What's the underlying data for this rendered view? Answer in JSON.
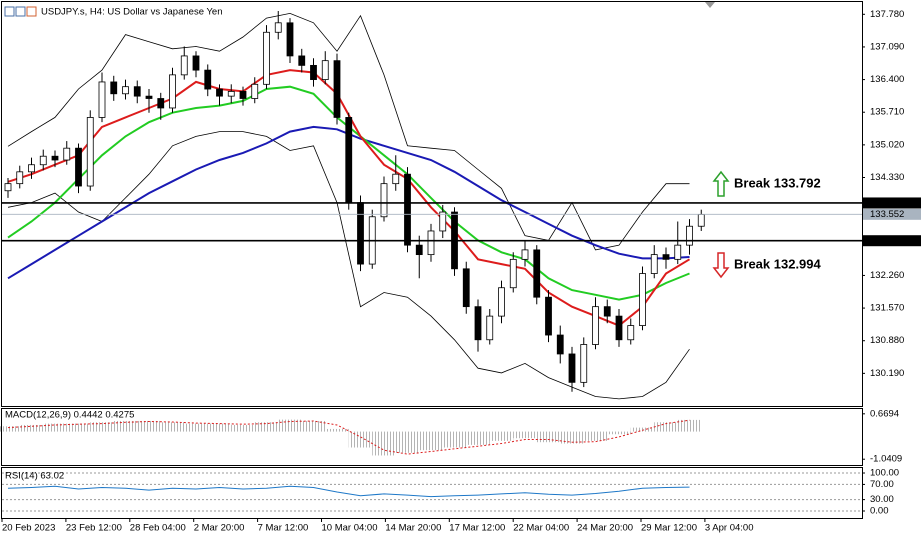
{
  "chart_data": [
    {
      "type": "candlestick",
      "title": "USDJPY.s, H4:  US Dollar vs Japanese Yen",
      "ylim": [
        129.5,
        138.04
      ],
      "yticks": [
        {
          "value": 137.78,
          "label": "137.780"
        },
        {
          "value": 137.09,
          "label": "137.090"
        },
        {
          "value": 136.4,
          "label": "136.400"
        },
        {
          "value": 135.71,
          "label": "135.710"
        },
        {
          "value": 135.02,
          "label": "135.020"
        },
        {
          "value": 134.33,
          "label": "134.330"
        },
        {
          "value": 132.26,
          "label": "132.260"
        },
        {
          "value": 131.57,
          "label": "131.570"
        },
        {
          "value": 130.88,
          "label": "130.880"
        },
        {
          "value": 130.19,
          "label": "130.190"
        }
      ],
      "candles": [
        [
          134.05,
          134.32,
          133.9,
          134.2
        ],
        [
          134.2,
          134.58,
          134.1,
          134.45
        ],
        [
          134.45,
          134.75,
          134.3,
          134.6
        ],
        [
          134.6,
          134.92,
          134.48,
          134.78
        ],
        [
          134.78,
          134.9,
          134.55,
          134.7
        ],
        [
          134.7,
          135.1,
          134.6,
          134.95
        ],
        [
          134.95,
          135.05,
          134.0,
          134.15
        ],
        [
          134.15,
          135.75,
          134.05,
          135.6
        ],
        [
          135.6,
          136.55,
          135.5,
          136.35
        ],
        [
          136.35,
          136.48,
          135.95,
          136.1
        ],
        [
          136.1,
          136.4,
          135.98,
          136.25
        ],
        [
          136.25,
          136.38,
          135.9,
          136.05
        ],
        [
          136.05,
          136.2,
          135.7,
          136.0
        ],
        [
          136.0,
          136.12,
          135.55,
          135.8
        ],
        [
          135.8,
          136.65,
          135.7,
          136.5
        ],
        [
          136.5,
          137.1,
          136.4,
          136.9
        ],
        [
          136.9,
          137.0,
          136.45,
          136.6
        ],
        [
          136.6,
          136.72,
          136.05,
          136.2
        ],
        [
          136.2,
          136.3,
          135.85,
          136.05
        ],
        [
          136.05,
          136.3,
          135.9,
          136.15
        ],
        [
          136.15,
          136.25,
          135.85,
          136.0
        ],
        [
          136.0,
          136.45,
          135.9,
          136.3
        ],
        [
          136.3,
          137.55,
          136.2,
          137.4
        ],
        [
          137.4,
          137.85,
          137.25,
          137.6
        ],
        [
          137.6,
          137.7,
          136.75,
          136.9
        ],
        [
          136.9,
          137.05,
          136.55,
          136.7
        ],
        [
          136.7,
          136.85,
          136.25,
          136.4
        ],
        [
          136.4,
          137.0,
          136.3,
          136.8
        ],
        [
          136.8,
          136.95,
          135.45,
          135.6
        ],
        [
          135.6,
          135.7,
          133.65,
          133.8
        ],
        [
          133.8,
          133.95,
          132.35,
          132.5
        ],
        [
          132.5,
          133.65,
          132.4,
          133.5
        ],
        [
          133.5,
          134.35,
          133.4,
          134.2
        ],
        [
          134.2,
          134.8,
          134.05,
          134.4
        ],
        [
          134.4,
          134.55,
          132.75,
          132.9
        ],
        [
          132.9,
          133.1,
          132.2,
          132.7
        ],
        [
          132.7,
          133.35,
          132.55,
          133.2
        ],
        [
          133.2,
          133.75,
          133.05,
          133.6
        ],
        [
          133.6,
          133.7,
          132.25,
          132.4
        ],
        [
          132.4,
          132.55,
          131.45,
          131.6
        ],
        [
          131.6,
          131.75,
          130.65,
          130.9
        ],
        [
          130.9,
          131.55,
          130.8,
          131.4
        ],
        [
          131.4,
          132.15,
          131.25,
          132.0
        ],
        [
          132.0,
          132.75,
          131.9,
          132.6
        ],
        [
          132.6,
          133.0,
          132.45,
          132.8
        ],
        [
          132.8,
          132.9,
          131.65,
          131.8
        ],
        [
          131.8,
          131.95,
          130.85,
          131.0
        ],
        [
          131.0,
          131.2,
          130.4,
          130.6
        ],
        [
          130.6,
          130.75,
          129.8,
          130.0
        ],
        [
          130.0,
          130.95,
          129.9,
          130.8
        ],
        [
          130.8,
          131.8,
          130.7,
          131.6
        ],
        [
          131.6,
          131.75,
          131.25,
          131.4
        ],
        [
          131.4,
          131.55,
          130.75,
          130.9
        ],
        [
          130.9,
          131.35,
          130.8,
          131.2
        ],
        [
          131.2,
          132.45,
          131.1,
          132.3
        ],
        [
          132.3,
          132.9,
          132.2,
          132.7
        ],
        [
          132.7,
          132.85,
          132.4,
          132.6
        ],
        [
          132.6,
          133.4,
          132.5,
          132.9
        ],
        [
          132.9,
          133.45,
          132.7,
          133.3
        ],
        [
          133.3,
          133.65,
          133.2,
          133.55
        ]
      ],
      "series": [
        {
          "color": "#000000",
          "values": [
            134.99,
            135.3,
            135.6,
            136.2,
            136.6,
            137.35,
            137.2,
            137.05,
            137.1,
            137.0,
            137.3,
            137.7,
            137.8,
            137.6,
            137.0,
            137.75,
            136.5,
            135.0,
            134.95,
            134.9,
            134.5,
            134.1,
            133.1,
            133.0,
            133.8,
            132.8,
            132.9,
            133.6,
            134.2,
            134.2
          ]
        },
        {
          "color": "#000000",
          "values": [
            133.7,
            133.8,
            134.0,
            133.6,
            133.4,
            133.9,
            134.4,
            135.0,
            135.2,
            135.3,
            135.3,
            135.2,
            134.9,
            135.0,
            133.8,
            131.6,
            131.9,
            131.8,
            131.4,
            130.9,
            130.3,
            130.2,
            130.4,
            130.1,
            129.9,
            129.7,
            129.65,
            129.7,
            130.0,
            130.7
          ]
        },
        {
          "color": "#1a1ab4",
          "values": [
            132.2,
            132.5,
            132.8,
            133.1,
            133.4,
            133.7,
            134.0,
            134.25,
            134.5,
            134.7,
            134.85,
            135.05,
            135.3,
            135.4,
            135.35,
            135.15,
            135.0,
            134.85,
            134.7,
            134.45,
            134.15,
            133.85,
            133.6,
            133.35,
            133.1,
            132.9,
            132.72,
            132.62,
            132.62,
            132.65
          ]
        },
        {
          "color": "#22cc22",
          "values": [
            133.06,
            133.4,
            133.8,
            134.3,
            134.8,
            135.2,
            135.5,
            135.7,
            135.8,
            135.85,
            135.95,
            136.2,
            136.25,
            136.1,
            135.6,
            135.2,
            134.8,
            134.4,
            133.9,
            133.4,
            133.0,
            132.75,
            132.6,
            132.2,
            131.95,
            131.85,
            131.75,
            131.85,
            132.1,
            132.3
          ]
        },
        {
          "color": "#dd1c1c",
          "values": [
            134.24,
            134.4,
            134.6,
            134.8,
            135.4,
            135.6,
            135.8,
            136.0,
            136.35,
            136.2,
            136.15,
            136.5,
            136.6,
            136.55,
            136.1,
            135.2,
            134.6,
            134.3,
            133.7,
            133.2,
            132.6,
            132.5,
            132.4,
            131.9,
            131.6,
            131.4,
            131.2,
            131.6,
            132.3,
            132.6
          ]
        }
      ],
      "levels": [
        {
          "value": 133.792,
          "color": "#000000"
        },
        {
          "value": 133.552,
          "color": "#a9b4c0"
        },
        {
          "value": 132.994,
          "color": "#000000"
        }
      ],
      "annotations": [
        {
          "text": "Break 133.792",
          "direction": "up",
          "color": "#2ca02c"
        },
        {
          "text": "Break 132.994",
          "direction": "down",
          "color": "#d62728"
        }
      ],
      "time_labels": [
        "20 Feb 2023",
        "23 Feb 12:00",
        "28 Feb 04:00",
        "2 Mar 20:00",
        "7 Mar 12:00",
        "10 Mar 04:00",
        "14 Mar 20:00",
        "17 Mar 12:00",
        "22 Mar 04:00",
        "24 Mar 20:00",
        "29 Mar 12:00",
        "3 Apr 04:00"
      ]
    },
    {
      "type": "macd",
      "title": "MACD(12,26,9) 0.4442 0.4275",
      "ylim": [
        -1.259,
        0.851
      ],
      "yticks": [
        0.6694,
        -1.0409
      ],
      "values": [
        0.2,
        0.25,
        0.3,
        0.3,
        0.35,
        0.4,
        0.4,
        0.35,
        0.3,
        0.3,
        0.25,
        0.35,
        0.45,
        0.4,
        0.1,
        -0.6,
        -0.9,
        -0.8,
        -0.7,
        -0.6,
        -0.5,
        -0.35,
        -0.25,
        -0.4,
        -0.45,
        -0.35,
        -0.1,
        0.15,
        0.35,
        0.44
      ],
      "signal": [
        0.15,
        0.2,
        0.25,
        0.28,
        0.3,
        0.35,
        0.38,
        0.36,
        0.32,
        0.3,
        0.28,
        0.3,
        0.38,
        0.4,
        0.25,
        -0.2,
        -0.7,
        -0.85,
        -0.75,
        -0.65,
        -0.55,
        -0.45,
        -0.3,
        -0.3,
        -0.4,
        -0.38,
        -0.2,
        0.05,
        0.3,
        0.43
      ],
      "color": "#b4b4b4",
      "signal_color": "#dd1c1c"
    },
    {
      "type": "rsi",
      "title": "RSI(14) 63.02",
      "ylim": [
        -18.4,
        113.2
      ],
      "yticks": [
        {
          "value": 100,
          "label": "100.00"
        },
        {
          "value": 70,
          "label": "70.00"
        },
        {
          "value": 30,
          "label": "30.00"
        },
        {
          "value": 0,
          "label": "0.00"
        }
      ],
      "values": [
        60,
        62,
        65,
        58,
        62,
        60,
        55,
        60,
        58,
        62,
        58,
        60,
        65,
        62,
        50,
        40,
        45,
        42,
        38,
        40,
        42,
        45,
        48,
        44,
        42,
        46,
        52,
        60,
        62,
        63
      ],
      "color": "#1e78c8"
    }
  ]
}
